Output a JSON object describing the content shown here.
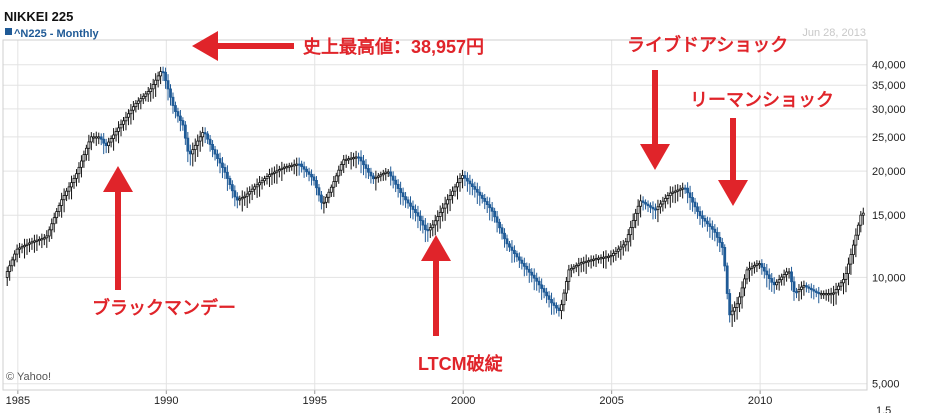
{
  "chart_data": {
    "type": "candlestick",
    "title": "NIKKEI 225",
    "subtitle": "^N225 - Monthly",
    "date_label": "Jun 28, 2013",
    "copyright": "© Yahoo!",
    "y_scale": "log",
    "ylim": [
      4800,
      47000
    ],
    "xlim": [
      1984.5,
      2013.6
    ],
    "grid": true,
    "y_ticks": [
      {
        "value": 40000,
        "label": "40,000"
      },
      {
        "value": 35000,
        "label": "35,000"
      },
      {
        "value": 30000,
        "label": "30,000"
      },
      {
        "value": 25000,
        "label": "25,000"
      },
      {
        "value": 20000,
        "label": "20,000"
      },
      {
        "value": 15000,
        "label": "15,000"
      },
      {
        "value": 10000,
        "label": "10,000"
      },
      {
        "value": 5000,
        "label": "5,000"
      }
    ],
    "y_tick_partial": "1.5",
    "x_ticks": [
      {
        "value": 1985,
        "label": "1985"
      },
      {
        "value": 1990,
        "label": "1990"
      },
      {
        "value": 1995,
        "label": "1995"
      },
      {
        "value": 2000,
        "label": "2000"
      },
      {
        "value": 2005,
        "label": "2005"
      },
      {
        "value": 2010,
        "label": "2010"
      }
    ],
    "series": [
      {
        "x": [
          1984.6,
          1985.0,
          1985.5,
          1986.0,
          1986.5,
          1987.0,
          1987.5,
          1987.8,
          1988.0,
          1988.5,
          1989.0,
          1989.5,
          1989.9,
          1990.3,
          1990.6,
          1990.8,
          1991.3,
          1991.6,
          1992.0,
          1992.4,
          1992.7,
          1993.0,
          1993.5,
          1994.0,
          1994.5,
          1995.0,
          1995.3,
          1995.6,
          1996.0,
          1996.5,
          1997.0,
          1997.5,
          1998.0,
          1998.5,
          1998.8,
          1999.0,
          1999.5,
          2000.0,
          2000.5,
          2001.0,
          2001.5,
          2002.0,
          2002.5,
          2003.0,
          2003.3,
          2003.6,
          2004.0,
          2004.5,
          2005.0,
          2005.5,
          2006.0,
          2006.5,
          2007.0,
          2007.5,
          2008.0,
          2008.5,
          2008.8,
          2009.0,
          2009.3,
          2009.6,
          2010.0,
          2010.5,
          2011.0,
          2011.2,
          2011.5,
          2012.0,
          2012.5,
          2012.9,
          2013.2,
          2013.45
        ],
        "y": [
          10000,
          12000,
          12600,
          13000,
          16500,
          19500,
          25000,
          25000,
          23500,
          27000,
          31000,
          34000,
          38900,
          30000,
          27000,
          22000,
          26000,
          23000,
          20000,
          16500,
          17000,
          18000,
          19500,
          20500,
          21000,
          19000,
          16000,
          18000,
          21500,
          22000,
          19000,
          20000,
          17000,
          15000,
          13500,
          14000,
          16500,
          19500,
          17500,
          15500,
          12500,
          11000,
          9800,
          8500,
          8000,
          10500,
          11000,
          11300,
          11500,
          12500,
          16500,
          15500,
          17300,
          18000,
          15000,
          13500,
          12000,
          7800,
          8500,
          10500,
          11000,
          9500,
          10500,
          9000,
          9500,
          9000,
          9000,
          10000,
          12500,
          15200
        ]
      }
    ],
    "annotations": [
      {
        "label": "史上最高値：38,957円"
      },
      {
        "label": "ライブドアショック"
      },
      {
        "label": "リーマンショック"
      },
      {
        "label": "ブラックマンデー"
      },
      {
        "label": "LTCM破綻"
      }
    ],
    "colors": {
      "up": "#ffffff",
      "up_outline": "#111111",
      "down": "#1f5a96",
      "arrow": "#e0242a",
      "grid": "#e3e3e3"
    }
  }
}
